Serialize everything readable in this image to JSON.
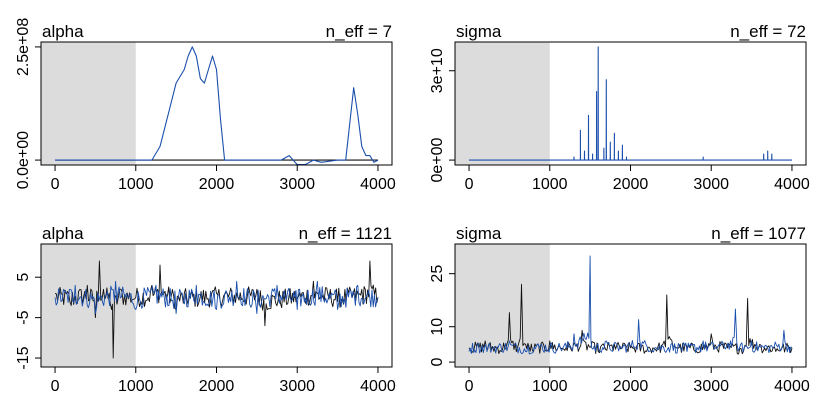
{
  "chart_data": [
    {
      "type": "line",
      "title": "alpha",
      "annotation": "n_eff = 7",
      "xlim": [
        0,
        4000
      ],
      "xticks": [
        0,
        1000,
        2000,
        3000,
        4000
      ],
      "ylim": [
        0,
        250000000.0
      ],
      "yticks": [
        0,
        250000000
      ],
      "ytick_labels": [
        "0.0e+00",
        "2.5e+08"
      ],
      "warmup_shaded": [
        0,
        1000
      ],
      "series": [
        {
          "color": "#111111",
          "x": [
            0,
            4000
          ],
          "y": [
            0,
            0
          ]
        },
        {
          "color": "#1a4fad",
          "x": [
            0,
            1000,
            1100,
            1200,
            1300,
            1400,
            1500,
            1600,
            1650,
            1700,
            1750,
            1800,
            1850,
            1900,
            1950,
            2000,
            2050,
            2100,
            2200,
            2400,
            2800,
            2900,
            3000,
            3100,
            3200,
            3300,
            3500,
            3600,
            3650,
            3700,
            3750,
            3800,
            3850,
            3900,
            3950,
            4000
          ],
          "y": [
            0,
            0,
            0,
            0,
            30000000,
            100000000,
            170000000,
            200000000,
            230000000,
            250000000,
            230000000,
            180000000,
            170000000,
            200000000,
            230000000,
            200000000,
            90000000,
            0,
            0,
            0,
            0,
            10000000,
            -10000000,
            -10000000,
            0,
            -5000000,
            0,
            0,
            80000000,
            160000000,
            100000000,
            30000000,
            10000000,
            10000000,
            -5000000,
            0
          ]
        }
      ]
    },
    {
      "type": "line",
      "title": "sigma",
      "annotation": "n_eff = 72",
      "xlim": [
        0,
        4000
      ],
      "xticks": [
        0,
        1000,
        2000,
        3000,
        4000
      ],
      "ylim": [
        0,
        38000000000.0
      ],
      "yticks": [
        0,
        30000000000
      ],
      "ytick_labels": [
        "0e+00",
        "3e+10"
      ],
      "warmup_shaded": [
        0,
        1000
      ],
      "series": [
        {
          "color": "#1a4fad",
          "x": [
            0,
            1299,
            1300,
            1301,
            1379,
            1380,
            1381,
            1429,
            1430,
            1431,
            1479,
            1480,
            1481,
            1529,
            1530,
            1531,
            1579,
            1580,
            1581,
            1599,
            1600,
            1601,
            1669,
            1670,
            1671,
            1699,
            1700,
            1701,
            1749,
            1750,
            1751,
            1799,
            1800,
            1801,
            1849,
            1850,
            1851,
            1899,
            1900,
            1901,
            1949,
            1950,
            1951,
            2899,
            2900,
            2901,
            3649,
            3650,
            3651,
            3699,
            3700,
            3701,
            3749,
            3750,
            3751,
            4000
          ],
          "y": [
            0,
            0,
            1000000000,
            0,
            0,
            10000000000,
            0,
            0,
            3000000000,
            0,
            0,
            15000000000,
            0,
            0,
            2000000000,
            0,
            0,
            23000000000,
            0,
            0,
            38000000000,
            0,
            0,
            4000000000,
            0,
            0,
            27000000000,
            0,
            0,
            6000000000,
            0,
            0,
            9000000000,
            0,
            0,
            3000000000,
            0,
            0,
            5000000000,
            0,
            0,
            1000000000,
            0,
            0,
            1000000000,
            0,
            0,
            2000000000,
            0,
            0,
            3000000000,
            0,
            0,
            2000000000,
            0,
            0
          ]
        }
      ]
    },
    {
      "type": "line",
      "title": "alpha",
      "annotation": "n_eff = 1121",
      "xlim": [
        0,
        4000
      ],
      "xticks": [
        0,
        1000,
        2000,
        3000,
        4000
      ],
      "ylim": [
        -16,
        12
      ],
      "yticks": [
        -15,
        -5,
        5
      ],
      "ytick_labels": [
        "-15",
        "-5",
        "5"
      ],
      "warmup_shaded": [
        0,
        1000
      ],
      "series": [
        {
          "color": "#111111",
          "x": [
            0,
            200,
            400,
            500,
            550,
            600,
            700,
            720,
            800,
            1000,
            1200,
            1300,
            1500,
            2000,
            2500,
            2600,
            3000,
            3200,
            3500,
            3800,
            3900,
            4000
          ],
          "y": [
            1,
            -2,
            3,
            -5,
            9,
            2,
            -3,
            -15,
            2,
            0,
            3,
            8,
            -3,
            1,
            2,
            -7,
            0,
            4,
            -1,
            2,
            9,
            0
          ]
        },
        {
          "color": "#1a4fad",
          "x": [
            0,
            250,
            500,
            750,
            1000,
            1250,
            1500,
            1750,
            2000,
            2250,
            2500,
            2750,
            3000,
            3250,
            3500,
            3750,
            4000
          ],
          "y": [
            0,
            3,
            -4,
            4,
            -3,
            3,
            -4,
            3,
            -3,
            4,
            -4,
            3,
            -3,
            4,
            -3,
            3,
            0
          ]
        }
      ]
    },
    {
      "type": "line",
      "title": "sigma",
      "annotation": "n_eff = 1077",
      "xlim": [
        0,
        4000
      ],
      "xticks": [
        0,
        1000,
        2000,
        3000,
        4000
      ],
      "ylim": [
        0,
        32
      ],
      "yticks": [
        0,
        10,
        25
      ],
      "ytick_labels": [
        "0",
        "10",
        "25"
      ],
      "warmup_shaded": [
        0,
        1000
      ],
      "series": [
        {
          "color": "#111111",
          "x": [
            0,
            200,
            400,
            500,
            600,
            650,
            700,
            800,
            1000,
            1200,
            1400,
            1600,
            1800,
            2000,
            2200,
            2400,
            2450,
            2600,
            2800,
            3000,
            3200,
            3400,
            3450,
            3600,
            3800,
            4000
          ],
          "y": [
            4,
            6,
            3,
            14,
            4,
            22,
            5,
            3,
            6,
            4,
            9,
            3,
            5,
            4,
            3,
            5,
            19,
            4,
            3,
            8,
            4,
            3,
            18,
            5,
            3,
            4
          ]
        },
        {
          "color": "#1a4fad",
          "x": [
            0,
            100,
            300,
            500,
            700,
            900,
            1100,
            1300,
            1500,
            1520,
            1700,
            1900,
            2100,
            2300,
            2500,
            2700,
            2900,
            3100,
            3300,
            3350,
            3500,
            3700,
            3900,
            4000
          ],
          "y": [
            3,
            5,
            4,
            6,
            3,
            5,
            4,
            8,
            30,
            4,
            6,
            4,
            12,
            4,
            5,
            3,
            6,
            5,
            15,
            4,
            6,
            4,
            9,
            4
          ]
        }
      ]
    }
  ]
}
